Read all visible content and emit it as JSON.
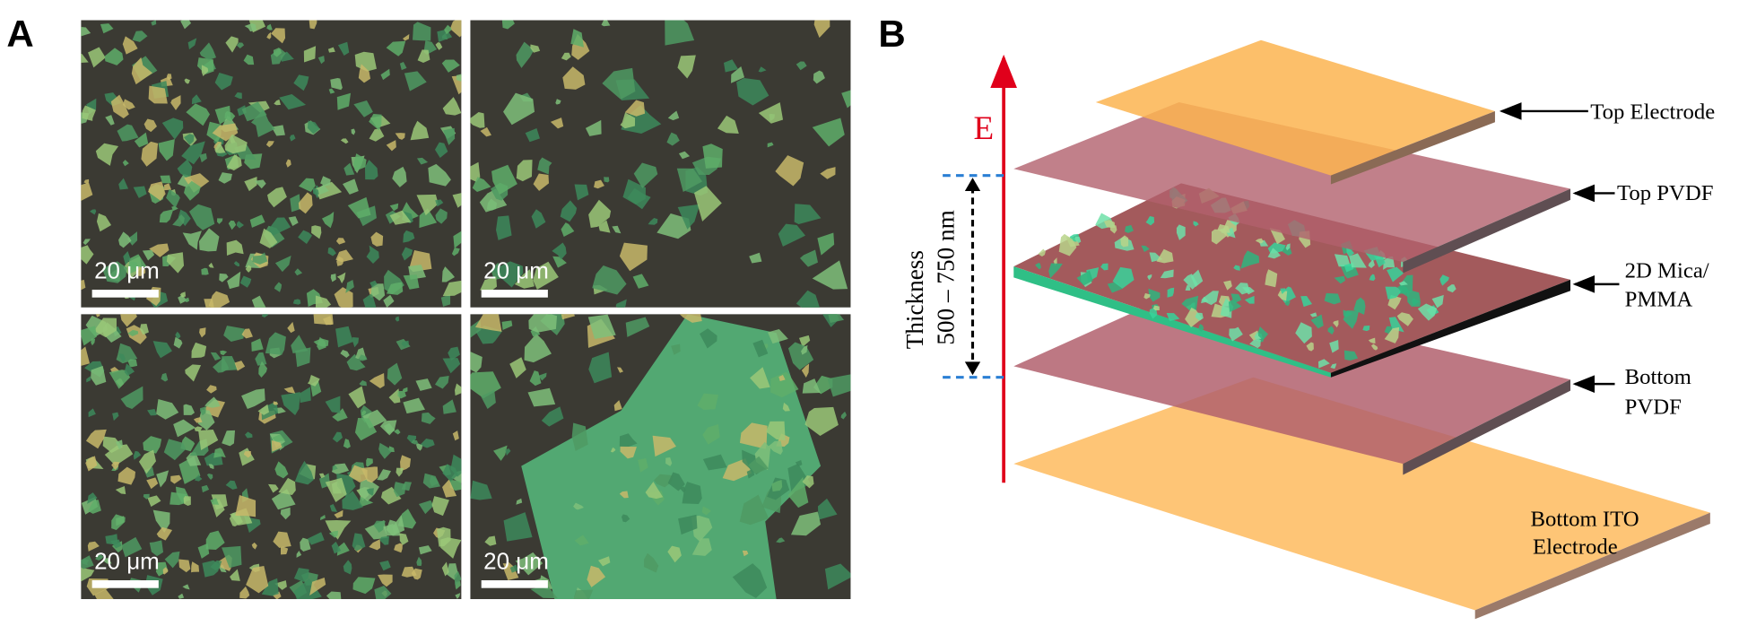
{
  "panels": {
    "a": {
      "label": "A",
      "images": [
        {
          "scale_bar": "20 μm"
        },
        {
          "scale_bar": "20 μm"
        },
        {
          "scale_bar": "20 μm"
        },
        {
          "scale_bar": "20 μm"
        }
      ]
    },
    "b": {
      "label": "B",
      "field_label": "E",
      "thickness": {
        "label": "Thickness",
        "range": "500 – 750 nm"
      },
      "layers": [
        {
          "label": [
            "Top Electrode"
          ]
        },
        {
          "label": [
            "Top PVDF"
          ]
        },
        {
          "label": [
            "2D Mica/",
            "PMMA"
          ]
        },
        {
          "label": [
            "Bottom",
            "PVDF"
          ]
        },
        {
          "label": [
            "Bottom ITO",
            "Electrode"
          ]
        }
      ]
    }
  }
}
